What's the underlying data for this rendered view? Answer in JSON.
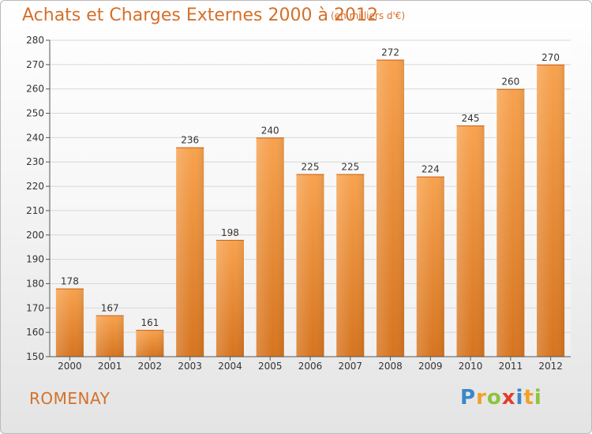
{
  "header": {
    "title": "Achats et Charges Externes 2000 à 2012",
    "subtitle": "(en milliers d'€)"
  },
  "footer": {
    "commune": "ROMENAY",
    "logo_letters": [
      {
        "ch": "P",
        "color": "#3a87c8"
      },
      {
        "ch": "r",
        "color": "#f2a02a"
      },
      {
        "ch": "o",
        "color": "#8cc43c"
      },
      {
        "ch": "x",
        "color": "#e33b2a"
      },
      {
        "ch": "i",
        "color": "#3a87c8"
      },
      {
        "ch": "t",
        "color": "#f2a02a"
      },
      {
        "ch": "i",
        "color": "#8cc43c"
      }
    ]
  },
  "colors": {
    "bar_top": "#f7a24e",
    "bar_bottom": "#d6741f",
    "title": "#d4702a",
    "grid": "#d7d7d7",
    "axis": "#555555"
  },
  "chart_data": {
    "type": "bar",
    "categories": [
      "2000",
      "2001",
      "2002",
      "2003",
      "2004",
      "2005",
      "2006",
      "2007",
      "2008",
      "2009",
      "2010",
      "2011",
      "2012"
    ],
    "values": [
      178,
      167,
      161,
      236,
      198,
      240,
      225,
      225,
      272,
      224,
      245,
      260,
      270
    ],
    "ylim": [
      150,
      280
    ],
    "yticks": [
      150,
      160,
      170,
      180,
      190,
      200,
      210,
      220,
      230,
      240,
      250,
      260,
      270,
      280
    ],
    "grid": true,
    "data_labels": true
  }
}
